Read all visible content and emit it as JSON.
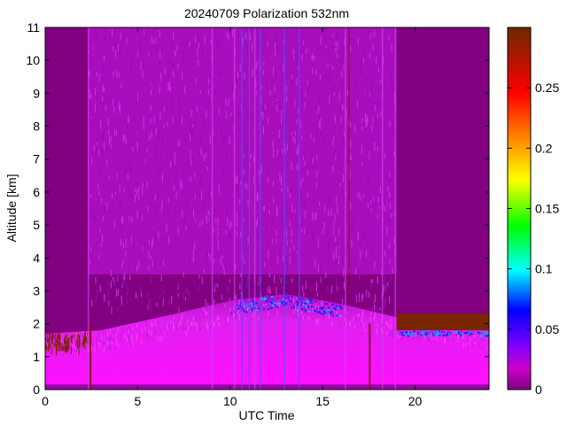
{
  "chart_data": {
    "type": "heatmap",
    "title": "20240709 Polarization 532nm",
    "xlabel": "UTC Time",
    "ylabel": "Altitude [km]",
    "xlim": [
      0,
      24
    ],
    "ylim": [
      0,
      11
    ],
    "x_ticks": [
      "0",
      "5",
      "10",
      "15",
      "20"
    ],
    "x_tick_values": [
      0,
      5,
      10,
      15,
      20
    ],
    "y_ticks": [
      "0",
      "1",
      "2",
      "3",
      "4",
      "5",
      "6",
      "7",
      "8",
      "9",
      "10",
      "11"
    ],
    "y_tick_values": [
      0,
      1,
      2,
      3,
      4,
      5,
      6,
      7,
      8,
      9,
      10,
      11
    ],
    "colorbar": {
      "range": [
        0,
        0.3
      ],
      "ticks": [
        "0",
        "0.05",
        "0.1",
        "0.15",
        "0.2",
        "0.25"
      ],
      "tick_values": [
        0,
        0.05,
        0.1,
        0.15,
        0.2,
        0.25
      ],
      "colormap": "hsv-like: purple-magenta-blue-cyan-green-yellow-orange-red-brown"
    },
    "colors": {
      "background": "#800080",
      "noise": "#b010c8",
      "boundary_layer": "#ff00ff",
      "high": "#7a2500"
    },
    "features": {
      "data_gaps_x": [
        2.4,
        2.6,
        17.5,
        17.7
      ],
      "noisy_region_x": [
        2.3,
        19
      ],
      "boundary_layer_top_km": [
        1.7,
        1.8,
        2.3,
        2.7,
        2.9,
        2.6,
        2.2,
        1.9
      ],
      "boundary_layer_top_x": [
        0,
        3,
        7,
        10,
        13,
        16,
        19,
        24
      ],
      "cloud_layer": {
        "x": [
          19,
          24
        ],
        "altitude_km": [
          1.8,
          2.3
        ],
        "value": 0.3
      }
    }
  }
}
